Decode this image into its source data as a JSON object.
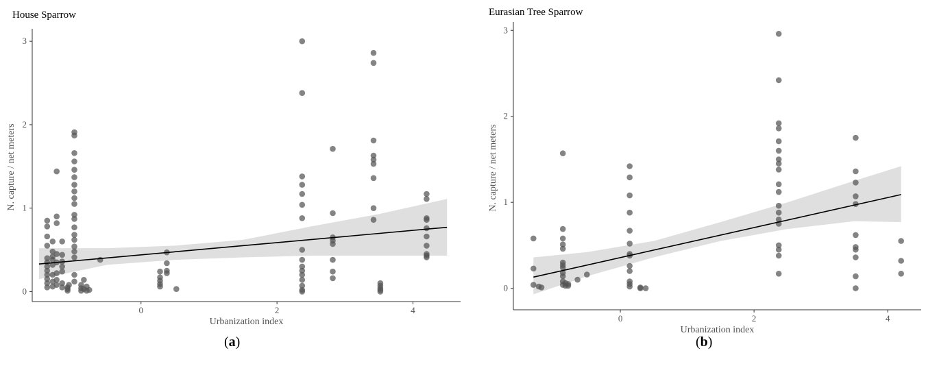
{
  "figure": {
    "panel_labels": [
      {
        "open": "(",
        "letter": "a",
        "close": ")"
      },
      {
        "open": "(",
        "letter": "b",
        "close": ")"
      }
    ]
  },
  "chart_data": [
    {
      "type": "scatter",
      "title": "House Sparrow",
      "xlabel": "Urbanization index",
      "ylabel": "N. capture / net meters",
      "xlim": [
        -1.6,
        4.7
      ],
      "ylim": [
        -0.12,
        3.1
      ],
      "xticks": [
        0,
        2,
        4
      ],
      "yticks": [
        0,
        1,
        2,
        3
      ],
      "grid": false,
      "point_color": "#555555",
      "trend": {
        "x": [
          -1.5,
          4.5
        ],
        "y": [
          0.33,
          0.77
        ]
      },
      "ribbon": {
        "x": [
          -1.5,
          -0.5,
          0.5,
          1.5,
          2.5,
          3.5,
          4.5
        ],
        "lower": [
          0.15,
          0.32,
          0.38,
          0.41,
          0.43,
          0.43,
          0.43
        ],
        "upper": [
          0.52,
          0.52,
          0.55,
          0.62,
          0.78,
          0.93,
          1.11
        ]
      },
      "points": [
        [
          -1.38,
          0.78
        ],
        [
          -1.38,
          0.85
        ],
        [
          -1.38,
          0.66
        ],
        [
          -1.38,
          0.55
        ],
        [
          -1.38,
          0.4
        ],
        [
          -1.38,
          0.35
        ],
        [
          -1.38,
          0.3
        ],
        [
          -1.38,
          0.25
        ],
        [
          -1.38,
          0.2
        ],
        [
          -1.38,
          0.15
        ],
        [
          -1.38,
          0.1
        ],
        [
          -1.38,
          0.05
        ],
        [
          -1.3,
          0.6
        ],
        [
          -1.3,
          0.48
        ],
        [
          -1.3,
          0.42
        ],
        [
          -1.3,
          0.38
        ],
        [
          -1.3,
          0.32
        ],
        [
          -1.3,
          0.2
        ],
        [
          -1.3,
          0.12
        ],
        [
          -1.3,
          0.06
        ],
        [
          -1.24,
          1.44
        ],
        [
          -1.24,
          0.9
        ],
        [
          -1.24,
          0.82
        ],
        [
          -1.24,
          0.45
        ],
        [
          -1.24,
          0.35
        ],
        [
          -1.24,
          0.22
        ],
        [
          -1.24,
          0.14
        ],
        [
          -1.24,
          0.08
        ],
        [
          -1.16,
          0.6
        ],
        [
          -1.16,
          0.44
        ],
        [
          -1.16,
          0.36
        ],
        [
          -1.16,
          0.3
        ],
        [
          -1.16,
          0.24
        ],
        [
          -1.16,
          0.1
        ],
        [
          -1.16,
          0.05
        ],
        [
          -1.08,
          0.05
        ],
        [
          -1.08,
          0.03
        ],
        [
          -1.08,
          0.01
        ],
        [
          -1.06,
          0.08
        ],
        [
          -0.98,
          1.91
        ],
        [
          -0.98,
          1.87
        ],
        [
          -0.98,
          1.66
        ],
        [
          -0.98,
          1.56
        ],
        [
          -0.98,
          1.46
        ],
        [
          -0.98,
          1.37
        ],
        [
          -0.98,
          1.28
        ],
        [
          -0.98,
          1.2
        ],
        [
          -0.98,
          1.12
        ],
        [
          -0.98,
          1.05
        ],
        [
          -0.98,
          0.92
        ],
        [
          -0.98,
          0.87
        ],
        [
          -0.98,
          0.77
        ],
        [
          -0.98,
          0.68
        ],
        [
          -0.98,
          0.62
        ],
        [
          -0.98,
          0.54
        ],
        [
          -0.98,
          0.48
        ],
        [
          -0.98,
          0.41
        ],
        [
          -0.98,
          0.2
        ],
        [
          -0.98,
          0.12
        ],
        [
          -0.88,
          0.08
        ],
        [
          -0.88,
          0.04
        ],
        [
          -0.88,
          0.01
        ],
        [
          -0.84,
          0.14
        ],
        [
          -0.84,
          0.03
        ],
        [
          -0.8,
          0.06
        ],
        [
          -0.8,
          0.01
        ],
        [
          -0.76,
          0.02
        ],
        [
          -0.6,
          0.38
        ],
        [
          0.28,
          0.24
        ],
        [
          0.28,
          0.17
        ],
        [
          0.28,
          0.13
        ],
        [
          0.28,
          0.09
        ],
        [
          0.28,
          0.06
        ],
        [
          0.38,
          0.47
        ],
        [
          0.38,
          0.34
        ],
        [
          0.38,
          0.25
        ],
        [
          0.38,
          0.22
        ],
        [
          0.52,
          0.03
        ],
        [
          2.37,
          3.0
        ],
        [
          2.37,
          2.38
        ],
        [
          2.37,
          1.38
        ],
        [
          2.37,
          1.28
        ],
        [
          2.37,
          1.17
        ],
        [
          2.37,
          1.04
        ],
        [
          2.37,
          0.88
        ],
        [
          2.37,
          0.5
        ],
        [
          2.37,
          0.38
        ],
        [
          2.37,
          0.3
        ],
        [
          2.37,
          0.25
        ],
        [
          2.37,
          0.2
        ],
        [
          2.37,
          0.14
        ],
        [
          2.37,
          0.07
        ],
        [
          2.37,
          0.02
        ],
        [
          2.37,
          0.0
        ],
        [
          2.82,
          1.71
        ],
        [
          2.82,
          0.94
        ],
        [
          2.82,
          0.65
        ],
        [
          2.82,
          0.61
        ],
        [
          2.82,
          0.57
        ],
        [
          2.82,
          0.38
        ],
        [
          2.82,
          0.24
        ],
        [
          2.82,
          0.16
        ],
        [
          3.42,
          2.86
        ],
        [
          3.42,
          2.74
        ],
        [
          3.42,
          1.81
        ],
        [
          3.42,
          1.63
        ],
        [
          3.42,
          1.58
        ],
        [
          3.42,
          1.53
        ],
        [
          3.42,
          1.36
        ],
        [
          3.42,
          1.0
        ],
        [
          3.42,
          0.86
        ],
        [
          3.52,
          0.1
        ],
        [
          3.52,
          0.07
        ],
        [
          3.52,
          0.04
        ],
        [
          3.52,
          0.02
        ],
        [
          3.52,
          0.0
        ],
        [
          4.2,
          1.17
        ],
        [
          4.2,
          1.11
        ],
        [
          4.2,
          0.88
        ],
        [
          4.2,
          0.86
        ],
        [
          4.2,
          0.76
        ],
        [
          4.2,
          0.66
        ],
        [
          4.2,
          0.55
        ],
        [
          4.2,
          0.45
        ],
        [
          4.2,
          0.43
        ],
        [
          4.2,
          0.41
        ]
      ]
    },
    {
      "type": "scatter",
      "title": "Eurasian Tree Sparrow",
      "xlabel": "Urbanization index",
      "ylabel": "N. capture / net meters",
      "xlim": [
        -1.6,
        4.5
      ],
      "ylim": [
        -0.25,
        3.05
      ],
      "xticks": [
        0,
        2,
        4
      ],
      "yticks": [
        0,
        1,
        2,
        3
      ],
      "grid": false,
      "point_color": "#555555",
      "trend": {
        "x": [
          -1.3,
          4.2
        ],
        "y": [
          0.13,
          1.09
        ]
      },
      "ribbon": {
        "x": [
          -1.3,
          -0.5,
          0.5,
          1.5,
          2.5,
          3.5,
          4.2
        ],
        "lower": [
          -0.07,
          0.14,
          0.36,
          0.55,
          0.69,
          0.78,
          0.77
        ],
        "upper": [
          0.36,
          0.42,
          0.55,
          0.77,
          1.0,
          1.25,
          1.42
        ]
      },
      "points": [
        [
          -1.3,
          0.58
        ],
        [
          -1.3,
          0.23
        ],
        [
          -1.3,
          0.04
        ],
        [
          -1.22,
          0.02
        ],
        [
          -1.18,
          0.01
        ],
        [
          -0.86,
          1.57
        ],
        [
          -0.86,
          0.69
        ],
        [
          -0.86,
          0.58
        ],
        [
          -0.86,
          0.51
        ],
        [
          -0.86,
          0.46
        ],
        [
          -0.86,
          0.3
        ],
        [
          -0.86,
          0.27
        ],
        [
          -0.86,
          0.24
        ],
        [
          -0.86,
          0.18
        ],
        [
          -0.86,
          0.14
        ],
        [
          -0.86,
          0.08
        ],
        [
          -0.86,
          0.04
        ],
        [
          -0.82,
          0.06
        ],
        [
          -0.82,
          0.03
        ],
        [
          -0.78,
          0.05
        ],
        [
          -0.78,
          0.03
        ],
        [
          -0.64,
          0.1
        ],
        [
          -0.5,
          0.16
        ],
        [
          0.14,
          1.42
        ],
        [
          0.14,
          1.29
        ],
        [
          0.14,
          1.08
        ],
        [
          0.14,
          0.88
        ],
        [
          0.14,
          0.67
        ],
        [
          0.14,
          0.52
        ],
        [
          0.14,
          0.4
        ],
        [
          0.14,
          0.38
        ],
        [
          0.14,
          0.26
        ],
        [
          0.14,
          0.2
        ],
        [
          0.14,
          0.08
        ],
        [
          0.14,
          0.05
        ],
        [
          0.14,
          0.02
        ],
        [
          0.3,
          0.01
        ],
        [
          0.3,
          0.0
        ],
        [
          0.38,
          0.0
        ],
        [
          2.37,
          2.96
        ],
        [
          2.37,
          2.42
        ],
        [
          2.37,
          1.92
        ],
        [
          2.37,
          1.86
        ],
        [
          2.37,
          1.71
        ],
        [
          2.37,
          1.6
        ],
        [
          2.37,
          1.5
        ],
        [
          2.37,
          1.45
        ],
        [
          2.37,
          1.38
        ],
        [
          2.37,
          1.21
        ],
        [
          2.37,
          1.12
        ],
        [
          2.37,
          0.96
        ],
        [
          2.37,
          0.88
        ],
        [
          2.37,
          0.8
        ],
        [
          2.37,
          0.75
        ],
        [
          2.37,
          0.5
        ],
        [
          2.37,
          0.45
        ],
        [
          2.37,
          0.38
        ],
        [
          2.37,
          0.17
        ],
        [
          3.52,
          1.75
        ],
        [
          3.52,
          1.36
        ],
        [
          3.52,
          1.23
        ],
        [
          3.52,
          1.07
        ],
        [
          3.52,
          0.98
        ],
        [
          3.52,
          0.62
        ],
        [
          3.52,
          0.48
        ],
        [
          3.52,
          0.45
        ],
        [
          3.52,
          0.36
        ],
        [
          3.52,
          0.14
        ],
        [
          3.52,
          0.0
        ],
        [
          4.2,
          0.55
        ],
        [
          4.2,
          0.32
        ],
        [
          4.2,
          0.17
        ]
      ]
    }
  ]
}
